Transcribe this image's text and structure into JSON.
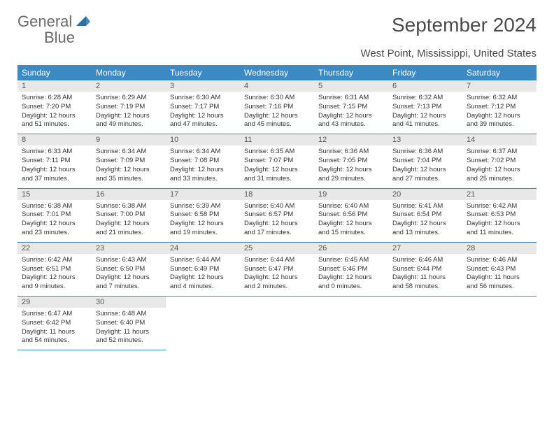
{
  "logo": {
    "word1": "General",
    "word2": "Blue"
  },
  "title": "September 2024",
  "location": "West Point, Mississippi, United States",
  "colors": {
    "header_bg": "#3b8ac4",
    "header_text": "#ffffff",
    "daynum_bg": "#e8e8e8",
    "daynum_text": "#555555",
    "body_text": "#333333",
    "title_text": "#4a4a4a",
    "row_border": "#3b8ac4",
    "logo_gray": "#6b6b6b",
    "logo_blue": "#3b8ac4"
  },
  "weekdays": [
    "Sunday",
    "Monday",
    "Tuesday",
    "Wednesday",
    "Thursday",
    "Friday",
    "Saturday"
  ],
  "days": [
    {
      "n": "1",
      "sr": "6:28 AM",
      "ss": "7:20 PM",
      "dlh": "12",
      "dlm": "51"
    },
    {
      "n": "2",
      "sr": "6:29 AM",
      "ss": "7:19 PM",
      "dlh": "12",
      "dlm": "49"
    },
    {
      "n": "3",
      "sr": "6:30 AM",
      "ss": "7:17 PM",
      "dlh": "12",
      "dlm": "47"
    },
    {
      "n": "4",
      "sr": "6:30 AM",
      "ss": "7:16 PM",
      "dlh": "12",
      "dlm": "45"
    },
    {
      "n": "5",
      "sr": "6:31 AM",
      "ss": "7:15 PM",
      "dlh": "12",
      "dlm": "43"
    },
    {
      "n": "6",
      "sr": "6:32 AM",
      "ss": "7:13 PM",
      "dlh": "12",
      "dlm": "41"
    },
    {
      "n": "7",
      "sr": "6:32 AM",
      "ss": "7:12 PM",
      "dlh": "12",
      "dlm": "39"
    },
    {
      "n": "8",
      "sr": "6:33 AM",
      "ss": "7:11 PM",
      "dlh": "12",
      "dlm": "37"
    },
    {
      "n": "9",
      "sr": "6:34 AM",
      "ss": "7:09 PM",
      "dlh": "12",
      "dlm": "35"
    },
    {
      "n": "10",
      "sr": "6:34 AM",
      "ss": "7:08 PM",
      "dlh": "12",
      "dlm": "33"
    },
    {
      "n": "11",
      "sr": "6:35 AM",
      "ss": "7:07 PM",
      "dlh": "12",
      "dlm": "31"
    },
    {
      "n": "12",
      "sr": "6:36 AM",
      "ss": "7:05 PM",
      "dlh": "12",
      "dlm": "29"
    },
    {
      "n": "13",
      "sr": "6:36 AM",
      "ss": "7:04 PM",
      "dlh": "12",
      "dlm": "27"
    },
    {
      "n": "14",
      "sr": "6:37 AM",
      "ss": "7:02 PM",
      "dlh": "12",
      "dlm": "25"
    },
    {
      "n": "15",
      "sr": "6:38 AM",
      "ss": "7:01 PM",
      "dlh": "12",
      "dlm": "23"
    },
    {
      "n": "16",
      "sr": "6:38 AM",
      "ss": "7:00 PM",
      "dlh": "12",
      "dlm": "21"
    },
    {
      "n": "17",
      "sr": "6:39 AM",
      "ss": "6:58 PM",
      "dlh": "12",
      "dlm": "19"
    },
    {
      "n": "18",
      "sr": "6:40 AM",
      "ss": "6:57 PM",
      "dlh": "12",
      "dlm": "17"
    },
    {
      "n": "19",
      "sr": "6:40 AM",
      "ss": "6:56 PM",
      "dlh": "12",
      "dlm": "15"
    },
    {
      "n": "20",
      "sr": "6:41 AM",
      "ss": "6:54 PM",
      "dlh": "12",
      "dlm": "13"
    },
    {
      "n": "21",
      "sr": "6:42 AM",
      "ss": "6:53 PM",
      "dlh": "12",
      "dlm": "11"
    },
    {
      "n": "22",
      "sr": "6:42 AM",
      "ss": "6:51 PM",
      "dlh": "12",
      "dlm": "9"
    },
    {
      "n": "23",
      "sr": "6:43 AM",
      "ss": "6:50 PM",
      "dlh": "12",
      "dlm": "7"
    },
    {
      "n": "24",
      "sr": "6:44 AM",
      "ss": "6:49 PM",
      "dlh": "12",
      "dlm": "4"
    },
    {
      "n": "25",
      "sr": "6:44 AM",
      "ss": "6:47 PM",
      "dlh": "12",
      "dlm": "2"
    },
    {
      "n": "26",
      "sr": "6:45 AM",
      "ss": "6:46 PM",
      "dlh": "12",
      "dlm": "0"
    },
    {
      "n": "27",
      "sr": "6:46 AM",
      "ss": "6:44 PM",
      "dlh": "11",
      "dlm": "58"
    },
    {
      "n": "28",
      "sr": "6:46 AM",
      "ss": "6:43 PM",
      "dlh": "11",
      "dlm": "56"
    },
    {
      "n": "29",
      "sr": "6:47 AM",
      "ss": "6:42 PM",
      "dlh": "11",
      "dlm": "54"
    },
    {
      "n": "30",
      "sr": "6:48 AM",
      "ss": "6:40 PM",
      "dlh": "11",
      "dlm": "52"
    }
  ],
  "labels": {
    "sunrise": "Sunrise:",
    "sunset": "Sunset:",
    "daylight": "Daylight:",
    "hours": "hours",
    "and": "and",
    "minutes": "minutes."
  }
}
